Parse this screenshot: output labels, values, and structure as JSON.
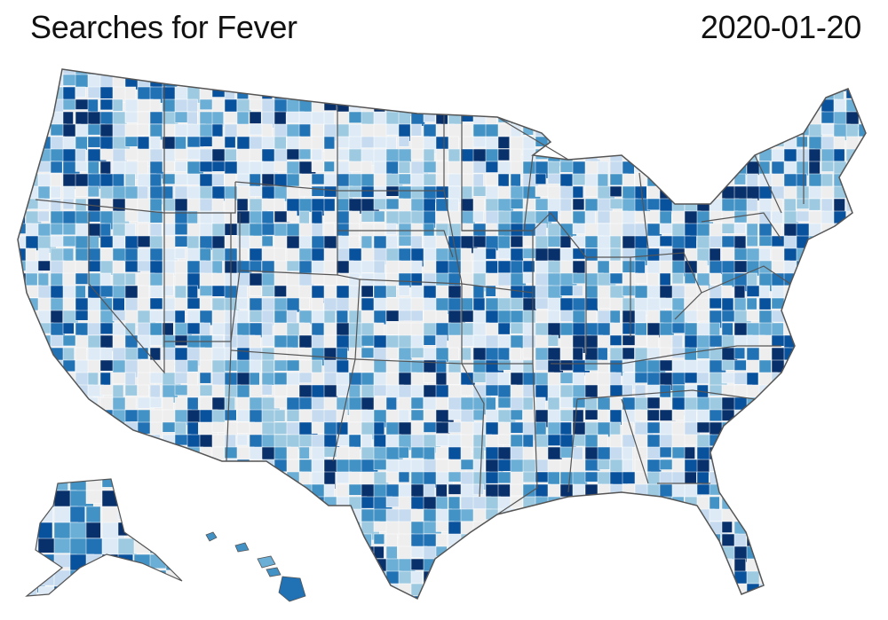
{
  "header": {
    "title": "Searches for Fever",
    "date": "2020-01-20"
  },
  "map": {
    "region": "United States (counties)",
    "insets": [
      "Alaska",
      "Hawaii"
    ],
    "color_scale": {
      "no_data": "#eeeeee",
      "steps": [
        "#deebf7",
        "#c6dbef",
        "#9ecae1",
        "#6baed6",
        "#4292c6",
        "#2171b5",
        "#08519c",
        "#08306b"
      ]
    },
    "border_color": "#555555"
  }
}
